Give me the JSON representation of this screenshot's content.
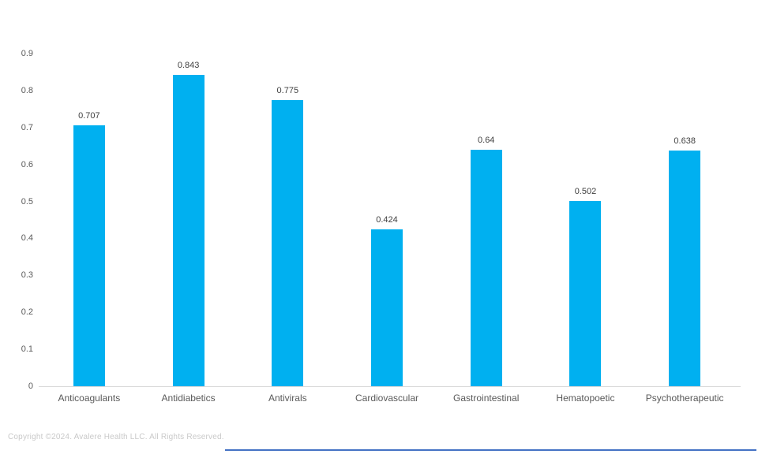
{
  "chart_data": {
    "type": "bar",
    "title": "",
    "xlabel": "",
    "ylabel": "",
    "categories": [
      "Anticoagulants",
      "Antidiabetics",
      "Antivirals",
      "Cardiovascular",
      "Gastrointestinal",
      "Hematopoetic",
      "Psychotherapeutic"
    ],
    "values": [
      0.707,
      0.843,
      0.775,
      0.424,
      0.64,
      0.502,
      0.638
    ],
    "value_labels": [
      "0.707",
      "0.843",
      "0.775",
      "0.424",
      "0.64",
      "0.502",
      "0.638"
    ],
    "ylim": [
      0,
      0.9
    ],
    "ytick_step": 0.1,
    "ytick_labels": [
      "0",
      "0.1",
      "0.2",
      "0.3",
      "0.4",
      "0.5",
      "0.6",
      "0.7",
      "0.8",
      "0.9"
    ],
    "grid": false,
    "legend_position": "none",
    "bar_color": "#00b0f0",
    "axis_line_color": "#d9d9d9",
    "tick_label_color": "#595959",
    "value_label_color": "#404040"
  },
  "footer": {
    "copyright": "Copyright ©2024. Avalere Health LLC. All Rights Reserved.",
    "copyright_color": "#c9c9c9",
    "rule_color": "#4472c4"
  }
}
